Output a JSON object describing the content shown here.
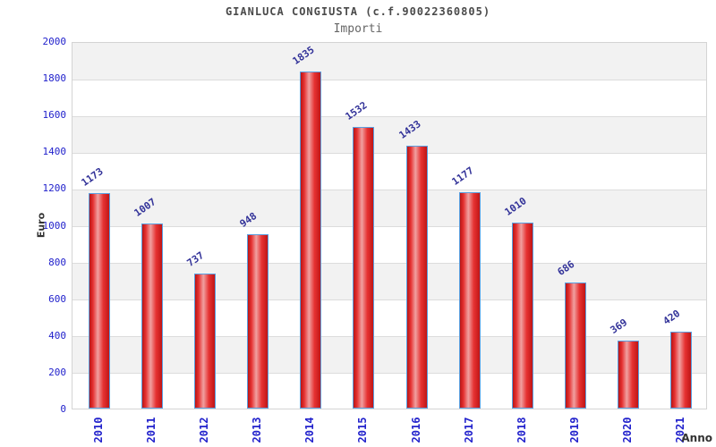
{
  "header": {
    "title": "GIANLUCA CONGIUSTA (c.f.90022360805)",
    "subtitle": "Importi"
  },
  "chart_data": {
    "type": "bar",
    "title": "GIANLUCA CONGIUSTA (c.f.90022360805)",
    "subtitle": "Importi",
    "categories": [
      "2010",
      "2011",
      "2012",
      "2013",
      "2014",
      "2015",
      "2016",
      "2017",
      "2018",
      "2019",
      "2020",
      "2021"
    ],
    "values": [
      1173,
      1007,
      737,
      948,
      1835,
      1532,
      1433,
      1177,
      1010,
      686,
      369,
      420
    ],
    "xlabel": "Anno",
    "ylabel": "Euro",
    "ylim": [
      0,
      2000
    ],
    "y_ticks": [
      0,
      200,
      400,
      600,
      800,
      1000,
      1200,
      1400,
      1600,
      1800,
      2000
    ],
    "grid": "horizontal-bands",
    "legend": "none",
    "colors": {
      "bar_fill": "#e01818",
      "bar_fill_highlight": "#f0a0a0",
      "bar_border": "#5a9fe0",
      "tick_label": "#2222cc",
      "value_label": "#333399",
      "band_gray": "#f2f2f2",
      "gridline": "#dcdcdc",
      "title": "#4a4a4a",
      "axis_title": "#333333"
    }
  }
}
